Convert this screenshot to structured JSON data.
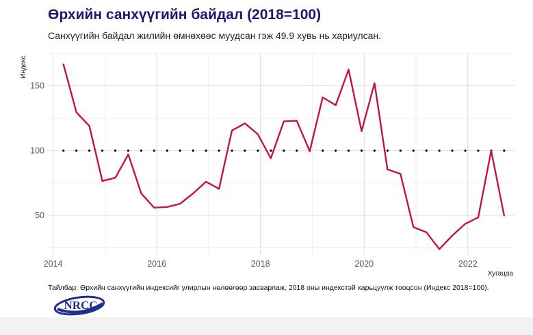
{
  "title": "Өрхийн санхүүгийн байдал (2018=100)",
  "subtitle": "Санхүүгийн байдал жилийн өмнөхөөс муудсан гэж 49.9 хувь нь хариулсан.",
  "note": "Тайлбар: Өрхийн санхүүгийн индексийг улирлын нөлөөгөөр засварлаж, 2018 оны индекстэй харьцуулж тооцсон (Индекс 2018=100).",
  "logo_text": "NRCC",
  "colors": {
    "series": "#c2143f",
    "reference": "#000000",
    "title": "#1a1a6e",
    "logo": "#1f2f8f"
  },
  "chart_data": {
    "type": "line",
    "xlabel": "Хугацаа",
    "ylabel": "Индекс",
    "xlim": [
      2013.9,
      2022.9
    ],
    "ylim": [
      20,
      175
    ],
    "x_ticks": [
      2014,
      2016,
      2018,
      2020,
      2022
    ],
    "y_ticks": [
      50,
      100,
      150
    ],
    "grid": true,
    "legend": "none",
    "series": [
      {
        "role": "index",
        "x": [
          2014.2,
          2014.45,
          2014.7,
          2014.95,
          2015.2,
          2015.45,
          2015.7,
          2015.95,
          2016.2,
          2016.45,
          2016.7,
          2016.95,
          2017.2,
          2017.45,
          2017.7,
          2017.95,
          2018.2,
          2018.45,
          2018.7,
          2018.95,
          2019.2,
          2019.45,
          2019.7,
          2019.95,
          2020.2,
          2020.45,
          2020.7,
          2020.95,
          2021.2,
          2021.45,
          2021.7,
          2021.95,
          2022.2,
          2022.45,
          2022.7
        ],
        "y": [
          166.5,
          129.5,
          119,
          76.5,
          79,
          97,
          67,
          56,
          56.5,
          59,
          67,
          76,
          70.5,
          115.5,
          121,
          112.5,
          94,
          122.5,
          123,
          99.5,
          141,
          135,
          162.5,
          115,
          152,
          85.5,
          82,
          41,
          37,
          24,
          34.5,
          43.5,
          48.5,
          100,
          49.9
        ]
      },
      {
        "role": "reference",
        "x": [
          2014.2,
          2014.45,
          2014.7,
          2014.95,
          2015.2,
          2015.45,
          2015.7,
          2015.95,
          2016.2,
          2016.45,
          2016.7,
          2016.95,
          2017.2,
          2017.45,
          2017.7,
          2017.95,
          2018.2,
          2018.45,
          2018.7,
          2018.95,
          2019.2,
          2019.45,
          2019.7,
          2019.95,
          2020.2,
          2020.45,
          2020.7,
          2020.95,
          2021.2,
          2021.45,
          2021.7,
          2021.95,
          2022.2,
          2022.45,
          2022.7
        ],
        "y": [
          100,
          100,
          100,
          100,
          100,
          100,
          100,
          100,
          100,
          100,
          100,
          100,
          100,
          100,
          100,
          100,
          100,
          100,
          100,
          100,
          100,
          100,
          100,
          100,
          100,
          100,
          100,
          100,
          100,
          100,
          100,
          100,
          100,
          100,
          100
        ]
      }
    ]
  }
}
